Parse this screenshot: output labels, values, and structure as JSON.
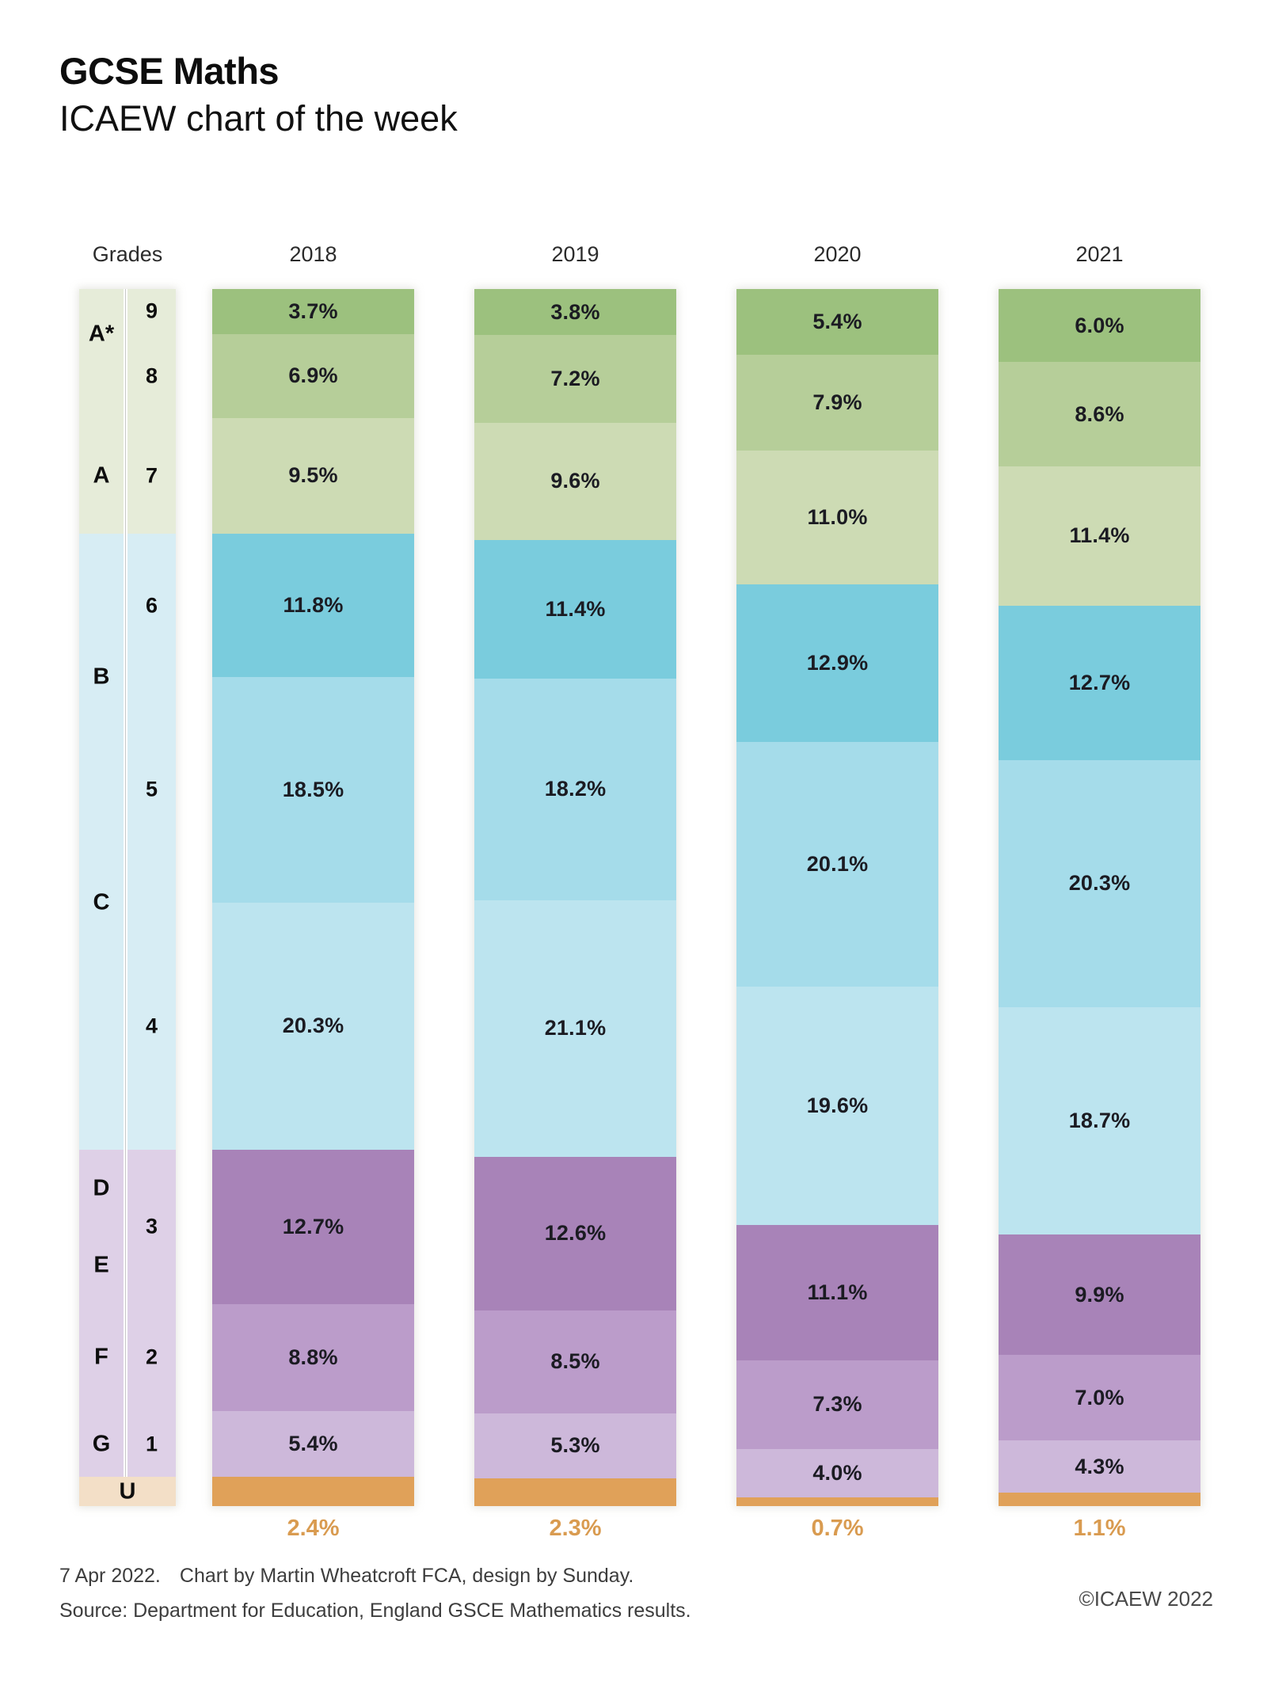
{
  "title": "GCSE Maths",
  "subtitle": "ICAEW chart of the week",
  "legend": {
    "header": "Grades",
    "regions": [
      {
        "name": "grades-9-to-7",
        "color": "#e6ecd9",
        "from_pct": 0,
        "to_pct": 20.1
      },
      {
        "name": "grades-6-to-4",
        "color": "#d7edf4",
        "from_pct": 20.1,
        "to_pct": 70.7
      },
      {
        "name": "grades-3-to-1",
        "color": "#ded0e7",
        "from_pct": 70.7,
        "to_pct": 97.6
      },
      {
        "name": "grade-u",
        "color": "#f3dfc7",
        "from_pct": 97.6,
        "to_pct": 100
      }
    ],
    "letter_labels": [
      {
        "label": "A*",
        "pos_pct": 3.7
      },
      {
        "label": "A",
        "pos_pct": 15.35
      },
      {
        "label": "B",
        "pos_pct": 31.9
      },
      {
        "label": "C",
        "pos_pct": 50.4
      },
      {
        "label": "D",
        "pos_pct": 73.9
      },
      {
        "label": "E",
        "pos_pct": 80.2
      },
      {
        "label": "F",
        "pos_pct": 87.8
      },
      {
        "label": "G",
        "pos_pct": 94.9
      }
    ],
    "number_labels": [
      {
        "label": "9",
        "pos_pct": 1.85
      },
      {
        "label": "8",
        "pos_pct": 7.15
      },
      {
        "label": "7",
        "pos_pct": 15.35
      },
      {
        "label": "6",
        "pos_pct": 26.0
      },
      {
        "label": "5",
        "pos_pct": 41.15
      },
      {
        "label": "4",
        "pos_pct": 60.55
      },
      {
        "label": "3",
        "pos_pct": 77.05
      },
      {
        "label": "2",
        "pos_pct": 87.8
      },
      {
        "label": "1",
        "pos_pct": 94.9
      }
    ],
    "u_label": "U",
    "u_pos_pct": 98.8,
    "divider_to_pct": 97.6
  },
  "chart_data": {
    "type": "bar",
    "stacked": true,
    "unit": "%",
    "title": "GCSE Maths",
    "categories": [
      "2018",
      "2019",
      "2020",
      "2021"
    ],
    "grades": [
      "9",
      "8",
      "7",
      "6",
      "5",
      "4",
      "3",
      "2",
      "1",
      "U"
    ],
    "series": [
      {
        "name": "2018",
        "values": [
          3.7,
          6.9,
          9.5,
          11.8,
          18.5,
          20.3,
          12.7,
          8.8,
          5.4,
          2.4
        ]
      },
      {
        "name": "2019",
        "values": [
          3.8,
          7.2,
          9.6,
          11.4,
          18.2,
          21.1,
          12.6,
          8.5,
          5.3,
          2.3
        ]
      },
      {
        "name": "2020",
        "values": [
          5.4,
          7.9,
          11.0,
          12.9,
          20.1,
          19.6,
          11.1,
          7.3,
          4.0,
          0.7
        ]
      },
      {
        "name": "2021",
        "values": [
          6.0,
          8.6,
          11.4,
          12.7,
          20.3,
          18.7,
          9.9,
          7.0,
          4.3,
          1.1
        ]
      }
    ],
    "grade_colors": [
      "#9cc17e",
      "#b6ce99",
      "#cddbb4",
      "#7accdd",
      "#a5dcea",
      "#bce4ef",
      "#a883b8",
      "#bb9cca",
      "#cdb8da",
      "#e0a159"
    ],
    "label_color_inside": "#1b1b22",
    "label_color_u": "#d99b50",
    "ylim": [
      0,
      100
    ],
    "grid": false,
    "legend_position": "left"
  },
  "footer": {
    "date": "7 Apr 2022.",
    "credit": "Chart by Martin Wheatcroft FCA, design by Sunday.",
    "source": "Source: Department for Education, England GSCE Mathematics results.",
    "copyright": "©ICAEW 2022"
  }
}
